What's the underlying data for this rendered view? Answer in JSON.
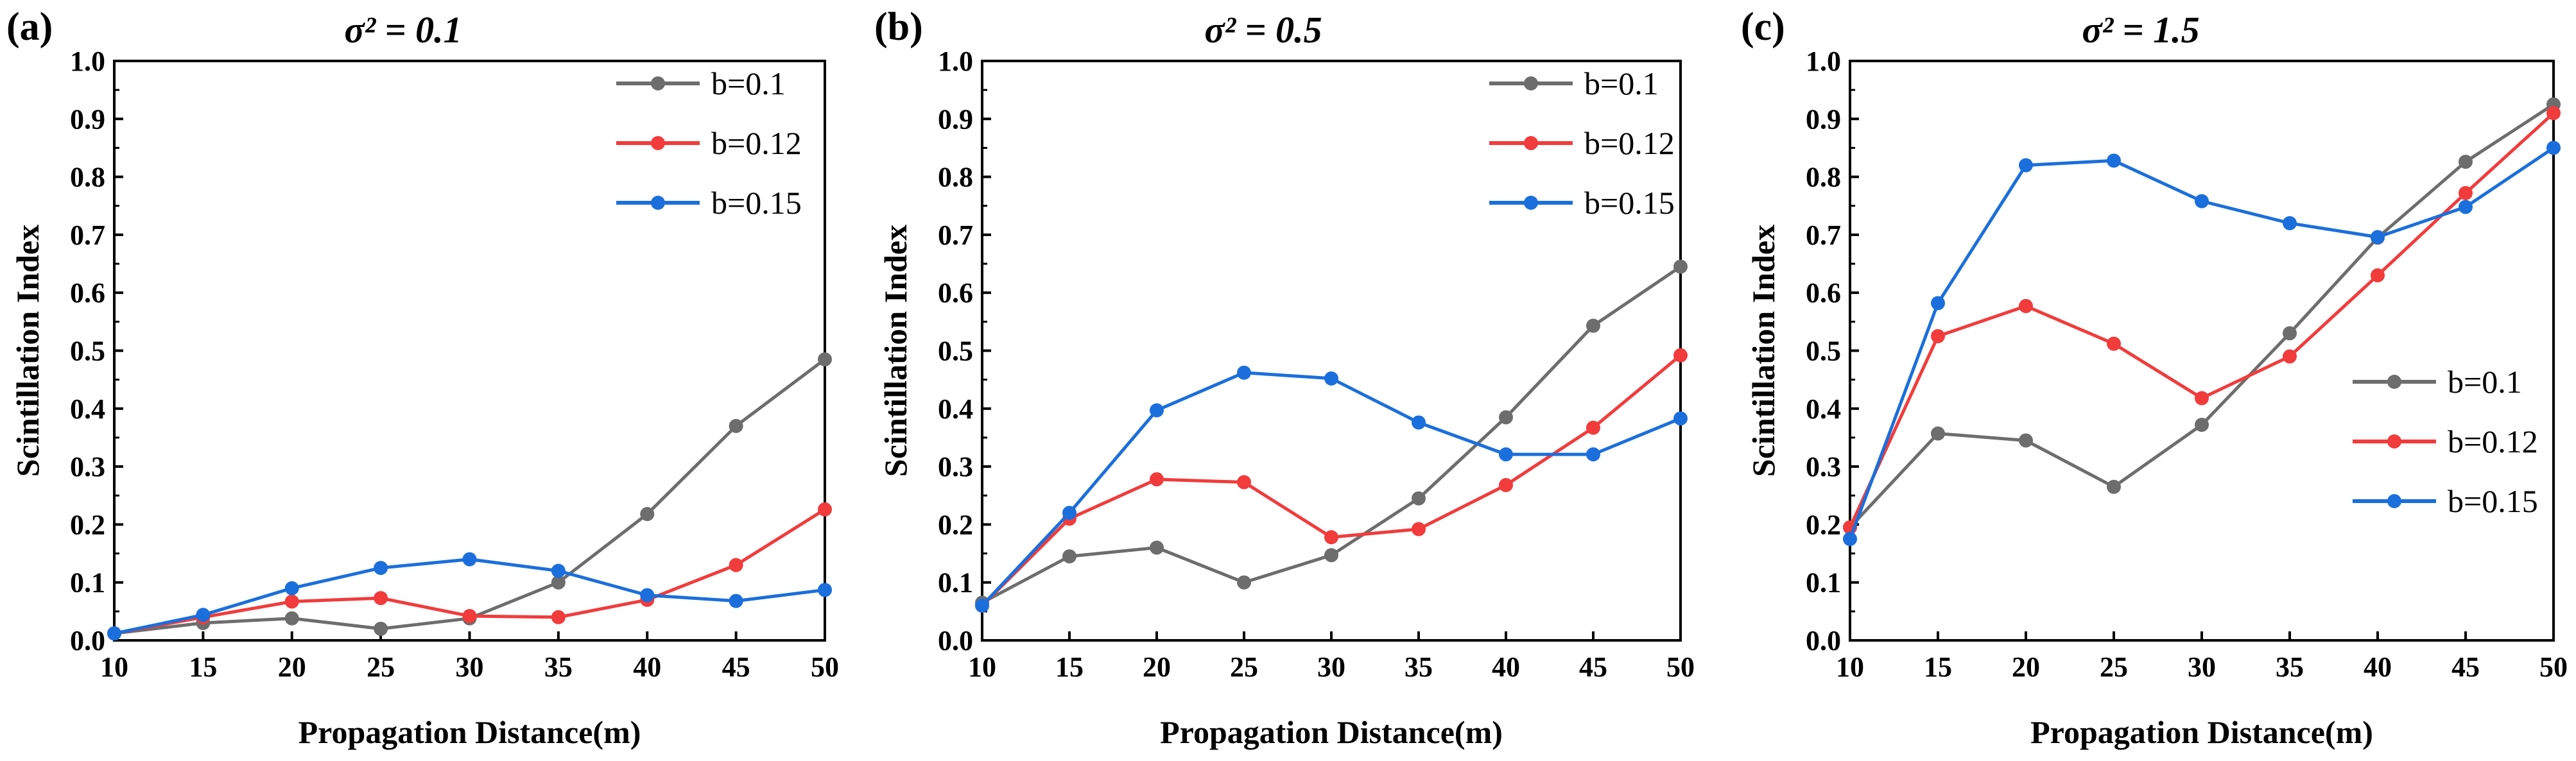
{
  "chart_data": [
    {
      "type": "line",
      "panel_label": "(a)",
      "title": "σ² = 0.1",
      "xlabel": "Propagation Distance(m)",
      "ylabel": "Scintillation Index",
      "x": [
        10,
        15,
        20,
        25,
        30,
        35,
        40,
        45,
        50
      ],
      "xlim": [
        10,
        50
      ],
      "ylim": [
        0.0,
        1.0
      ],
      "x_ticks": [
        "10",
        "15",
        "20",
        "25",
        "30",
        "35",
        "40",
        "45",
        "50"
      ],
      "y_ticks": [
        "0.0",
        "0.1",
        "0.2",
        "0.3",
        "0.4",
        "0.5",
        "0.6",
        "0.7",
        "0.8",
        "0.9",
        "1.0"
      ],
      "legend_position": "top-right",
      "grid": false,
      "series": [
        {
          "name": "b=0.1",
          "color": "#6d6d6d",
          "values": [
            0.012,
            0.03,
            0.038,
            0.02,
            0.038,
            0.1,
            0.218,
            0.37,
            0.485
          ]
        },
        {
          "name": "b=0.12",
          "color": "#f23b3b",
          "values": [
            0.012,
            0.04,
            0.067,
            0.073,
            0.042,
            0.04,
            0.07,
            0.13,
            0.226
          ]
        },
        {
          "name": "b=0.15",
          "color": "#1a6fdc",
          "values": [
            0.012,
            0.044,
            0.09,
            0.125,
            0.14,
            0.12,
            0.078,
            0.068,
            0.087
          ]
        }
      ]
    },
    {
      "type": "line",
      "panel_label": "(b)",
      "title": "σ² = 0.5",
      "xlabel": "Propagation Distance(m)",
      "ylabel": "Scintillation Index",
      "x": [
        10,
        15,
        20,
        25,
        30,
        35,
        40,
        45,
        50
      ],
      "xlim": [
        10,
        50
      ],
      "ylim": [
        0.0,
        1.0
      ],
      "x_ticks": [
        "10",
        "15",
        "20",
        "25",
        "30",
        "35",
        "40",
        "45",
        "50"
      ],
      "y_ticks": [
        "0.0",
        "0.1",
        "0.2",
        "0.3",
        "0.4",
        "0.5",
        "0.6",
        "0.7",
        "0.8",
        "0.9",
        "1.0"
      ],
      "legend_position": "top-right",
      "grid": false,
      "series": [
        {
          "name": "b=0.1",
          "color": "#6d6d6d",
          "values": [
            0.065,
            0.145,
            0.16,
            0.1,
            0.147,
            0.245,
            0.385,
            0.543,
            0.645
          ]
        },
        {
          "name": "b=0.12",
          "color": "#f23b3b",
          "values": [
            0.06,
            0.21,
            0.278,
            0.273,
            0.178,
            0.192,
            0.268,
            0.367,
            0.492
          ]
        },
        {
          "name": "b=0.15",
          "color": "#1a6fdc",
          "values": [
            0.06,
            0.22,
            0.397,
            0.462,
            0.452,
            0.376,
            0.321,
            0.321,
            0.383
          ]
        }
      ]
    },
    {
      "type": "line",
      "panel_label": "(c)",
      "title": "σ² = 1.5",
      "xlabel": "Propagation Distance(m)",
      "ylabel": "Scintillation Index",
      "x": [
        10,
        15,
        20,
        25,
        30,
        35,
        40,
        45,
        50
      ],
      "xlim": [
        10,
        50
      ],
      "ylim": [
        0.0,
        1.0
      ],
      "x_ticks": [
        "10",
        "15",
        "20",
        "25",
        "30",
        "35",
        "40",
        "45",
        "50"
      ],
      "y_ticks": [
        "0.0",
        "0.1",
        "0.2",
        "0.3",
        "0.4",
        "0.5",
        "0.6",
        "0.7",
        "0.8",
        "0.9",
        "1.0"
      ],
      "legend_position": "center-right",
      "grid": false,
      "series": [
        {
          "name": "b=0.1",
          "color": "#6d6d6d",
          "values": [
            0.195,
            0.357,
            0.345,
            0.265,
            0.372,
            0.53,
            0.695,
            0.826,
            0.925
          ]
        },
        {
          "name": "b=0.12",
          "color": "#f23b3b",
          "values": [
            0.195,
            0.525,
            0.577,
            0.512,
            0.418,
            0.49,
            0.63,
            0.772,
            0.91
          ]
        },
        {
          "name": "b=0.15",
          "color": "#1a6fdc",
          "values": [
            0.175,
            0.582,
            0.82,
            0.828,
            0.758,
            0.72,
            0.696,
            0.748,
            0.85
          ]
        }
      ]
    }
  ]
}
